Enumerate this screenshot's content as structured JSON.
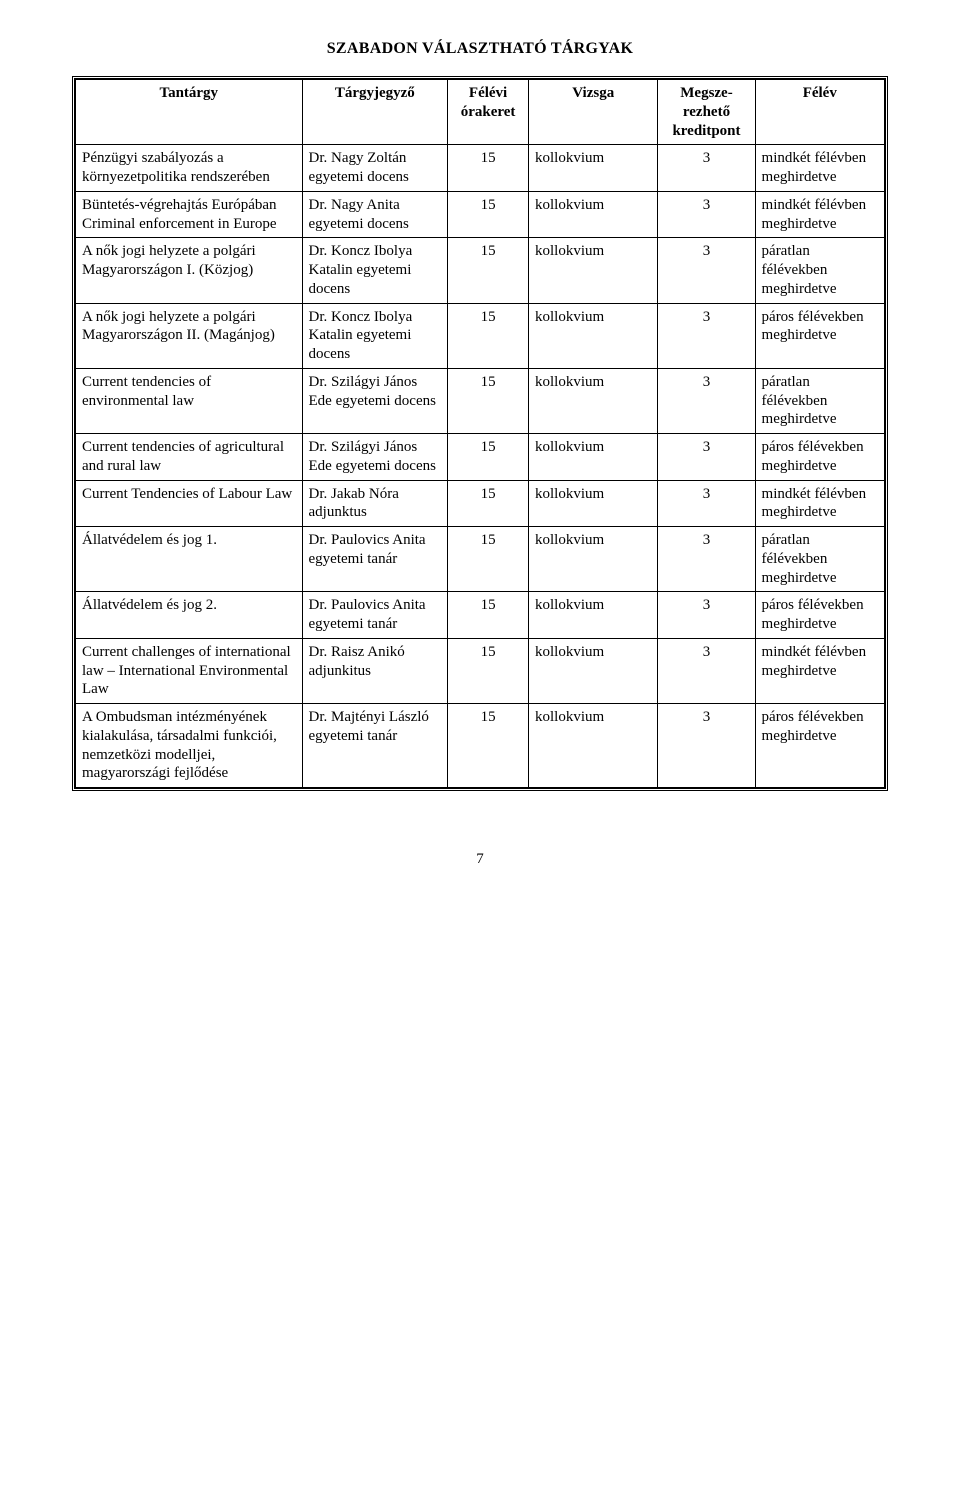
{
  "title": "SZABADON VÁLASZTHATÓ TÁRGYAK",
  "page_number": "7",
  "columns": {
    "c1": "Tantárgy",
    "c2": "Tárgyjegyző",
    "c3": "Félévi órakeret",
    "c4": "Vizsga",
    "c5": "Megsze-rezhető kreditpont",
    "c6": "Félév"
  },
  "rows": [
    {
      "subject": "Pénzügyi szabályozás a környezetpolitika rendszerében",
      "lecturer": "Dr. Nagy Zoltán egyetemi docens",
      "period": "15",
      "exam": "kollokvium",
      "credits": "3",
      "semester": "mindkét félévben meghirdetve"
    },
    {
      "subject": "Büntetés-végrehajtás Európában\nCriminal enforcement in Europe",
      "lecturer": "Dr. Nagy Anita egyetemi docens",
      "period": "15",
      "exam": "kollokvium",
      "credits": "3",
      "semester": "mindkét félévben meghirdetve"
    },
    {
      "subject": "A nők jogi helyzete a polgári Magyarországon I. (Közjog)",
      "lecturer": "Dr. Koncz Ibolya Katalin egyetemi docens",
      "period": "15",
      "exam": "kollokvium",
      "credits": "3",
      "semester": "páratlan félévekben meghirdetve"
    },
    {
      "subject": "A nők jogi helyzete a polgári Magyarországon II. (Magánjog)",
      "lecturer": "Dr. Koncz Ibolya Katalin egyetemi docens",
      "period": "15",
      "exam": "kollokvium",
      "credits": "3",
      "semester": "páros félévekben meghirdetve"
    },
    {
      "subject": "Current tendencies of environmental law",
      "lecturer": "Dr. Szilágyi János Ede egyetemi docens",
      "period": "15",
      "exam": "kollokvium",
      "credits": "3",
      "semester": "páratlan félévekben meghirdetve"
    },
    {
      "subject": "Current tendencies of agricultural and rural law",
      "lecturer": "Dr. Szilágyi János Ede egyetemi docens",
      "period": "15",
      "exam": "kollokvium",
      "credits": "3",
      "semester": "páros félévekben meghirdetve"
    },
    {
      "subject": "Current Tendencies of Labour Law",
      "lecturer": "Dr. Jakab Nóra adjunktus",
      "period": "15",
      "exam": "kollokvium",
      "credits": "3",
      "semester": "mindkét félévben meghirdetve"
    },
    {
      "subject": "Állatvédelem és jog 1.",
      "lecturer": "Dr. Paulovics Anita egyetemi tanár",
      "period": "15",
      "exam": "kollokvium",
      "credits": "3",
      "semester": "páratlan félévekben meghirdetve"
    },
    {
      "subject": "Állatvédelem és jog 2.",
      "lecturer": "Dr. Paulovics Anita egyetemi tanár",
      "period": "15",
      "exam": "kollokvium",
      "credits": "3",
      "semester": "páros félévekben meghirdetve"
    },
    {
      "subject": "Current challenges of international law – International Environmental Law",
      "lecturer": "Dr. Raisz Anikó adjunkitus",
      "period": "15",
      "exam": "kollokvium",
      "credits": "3",
      "semester": "mindkét félévben meghirdetve"
    },
    {
      "subject": "A Ombudsman intézményének kialakulása, társadalmi funkciói, nemzetközi modelljei, magyarországi fejlődése",
      "lecturer": "Dr. Majtényi László egyetemi tanár",
      "period": "15",
      "exam": "kollokvium",
      "credits": "3",
      "semester": "páros félévekben meghirdetve"
    }
  ]
}
